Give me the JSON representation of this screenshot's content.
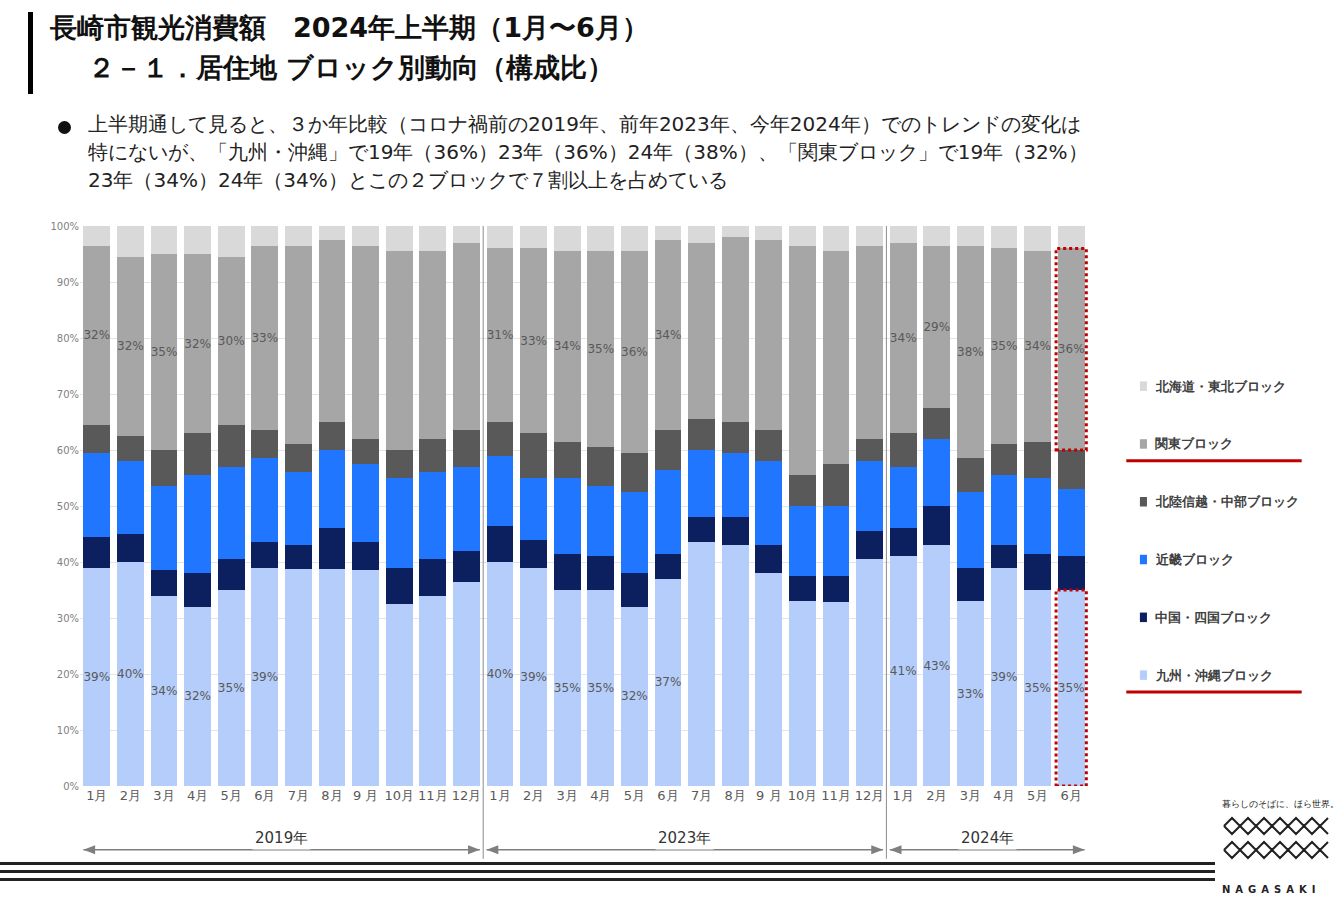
{
  "chart_data": {
    "type": "bar",
    "stacked": true,
    "grid": true,
    "title": "長崎市観光消費額　2024年上半期（1月〜6月）",
    "subtitle": "２－１．居住地 ブロック別動向（構成比）",
    "annotations": [
      "上半期通して見ると、３か年比較（コロナ禍前の2019年、前年2023年、今年2024年）でのトレンドの変化は",
      "特にないが、「九州・沖縄」で19年（36%）23年（36%）24年（38%）、「関東ブロック」で19年（32%）",
      "23年（34%）24年（34%）とこの２ブロックで７割以上を占めている"
    ],
    "categories": [
      "1月",
      "2月",
      "3月",
      "4月",
      "5月",
      "6月",
      "7月",
      "8月",
      "9 月",
      "10月",
      "11月",
      "12月",
      "1月",
      "2月",
      "3月",
      "4月",
      "5月",
      "6月",
      "7月",
      "8月",
      "9 月",
      "10月",
      "11月",
      "12月",
      "1月",
      "2月",
      "3月",
      "4月",
      "5月",
      "6月"
    ],
    "year_groups": [
      {
        "label": "2019年",
        "count": 12
      },
      {
        "label": "2023年",
        "count": 12
      },
      {
        "label": "2024年",
        "count": 6
      }
    ],
    "ylim": [
      0,
      100
    ],
    "yticks": [
      {
        "value": 0,
        "label": "0%"
      },
      {
        "value": 10,
        "label": "10%"
      },
      {
        "value": 20,
        "label": "20%"
      },
      {
        "value": 30,
        "label": "30%"
      },
      {
        "value": 40,
        "label": "40%"
      },
      {
        "value": 50,
        "label": "50%"
      },
      {
        "value": 60,
        "label": "60%"
      },
      {
        "value": 70,
        "label": "70%"
      },
      {
        "value": 80,
        "label": "80%"
      },
      {
        "value": 90,
        "label": "90%"
      },
      {
        "value": 100,
        "label": "100%"
      }
    ],
    "series": [
      {
        "name": "九州・沖縄ブロック",
        "color": "#b4cdfa",
        "values": [
          39,
          40,
          34,
          32,
          35,
          39,
          38.8,
          38.8,
          38.5,
          32.5,
          34,
          36.5,
          40,
          39,
          35,
          35,
          32,
          37,
          43.5,
          43,
          38,
          33,
          32.8,
          40.5,
          41,
          43,
          33,
          39,
          35,
          35
        ],
        "value_labels": [
          "39%",
          "40%",
          "34%",
          "32%",
          "35%",
          "39%",
          null,
          null,
          null,
          null,
          null,
          null,
          "40%",
          "39%",
          "35%",
          "35%",
          "32%",
          "37%",
          null,
          null,
          null,
          null,
          null,
          null,
          "41%",
          "43%",
          "33%",
          "39%",
          "35%",
          "35%"
        ]
      },
      {
        "name": "中国・四国ブロック",
        "color": "#0c1f5e",
        "values": [
          5.5,
          5,
          4.5,
          6,
          5.5,
          4.5,
          4.2,
          7.2,
          5,
          6.5,
          6.5,
          5.5,
          6.5,
          5,
          6.5,
          6,
          6,
          4.5,
          4.5,
          5,
          5,
          4.5,
          4.7,
          5,
          5,
          7,
          6,
          4,
          6.5,
          6
        ]
      },
      {
        "name": "近畿ブロック",
        "color": "#2176ff",
        "values": [
          15,
          13,
          15,
          17.5,
          16.5,
          15,
          13,
          14,
          14,
          16,
          15.5,
          15,
          12.5,
          11,
          13.5,
          12.5,
          14.5,
          15,
          12,
          11.5,
          15,
          12.5,
          12.5,
          12.5,
          11,
          12,
          13.5,
          12.5,
          13.5,
          12
        ]
      },
      {
        "name": "北陸信越・中部ブロック",
        "color": "#595959",
        "values": [
          5,
          4.5,
          6.5,
          7.5,
          7.5,
          5,
          5,
          5,
          4.5,
          5,
          6,
          6.5,
          6,
          8,
          6.5,
          7,
          7,
          7,
          5.5,
          5.5,
          5.5,
          5.5,
          7.5,
          4,
          6,
          5.5,
          6,
          5.5,
          6.5,
          7
        ]
      },
      {
        "name": "関東ブロック",
        "color": "#a6a6a6",
        "values": [
          32,
          32,
          35,
          32,
          30,
          33,
          35.5,
          32.5,
          34.5,
          35.5,
          33.5,
          33.5,
          31,
          33,
          34,
          35,
          36,
          34,
          31.5,
          33,
          34,
          41,
          38,
          34.5,
          34,
          29,
          38,
          35,
          34,
          36
        ],
        "value_labels": [
          "32%",
          "32%",
          "35%",
          "32%",
          "30%",
          "33%",
          null,
          null,
          null,
          null,
          null,
          null,
          "31%",
          "33%",
          "34%",
          "35%",
          "36%",
          "34%",
          null,
          null,
          null,
          null,
          null,
          null,
          "34%",
          "29%",
          "38%",
          "35%",
          "34%",
          "36%"
        ]
      },
      {
        "name": "北海道・東北ブロック",
        "color": "#d9d9d9",
        "values": [
          3.5,
          5.5,
          5,
          5,
          5.5,
          3.5,
          3.5,
          2.5,
          3.5,
          4.5,
          4.5,
          3,
          4,
          4,
          4.5,
          4.5,
          4.5,
          2.5,
          3,
          2,
          2.5,
          3.5,
          4.5,
          3.5,
          3,
          3.5,
          3.5,
          4,
          4.5,
          4
        ]
      }
    ]
  },
  "footer": {
    "tagline": "暮らしのそばに、ほら世界。",
    "brand": "NAGASAKI"
  }
}
